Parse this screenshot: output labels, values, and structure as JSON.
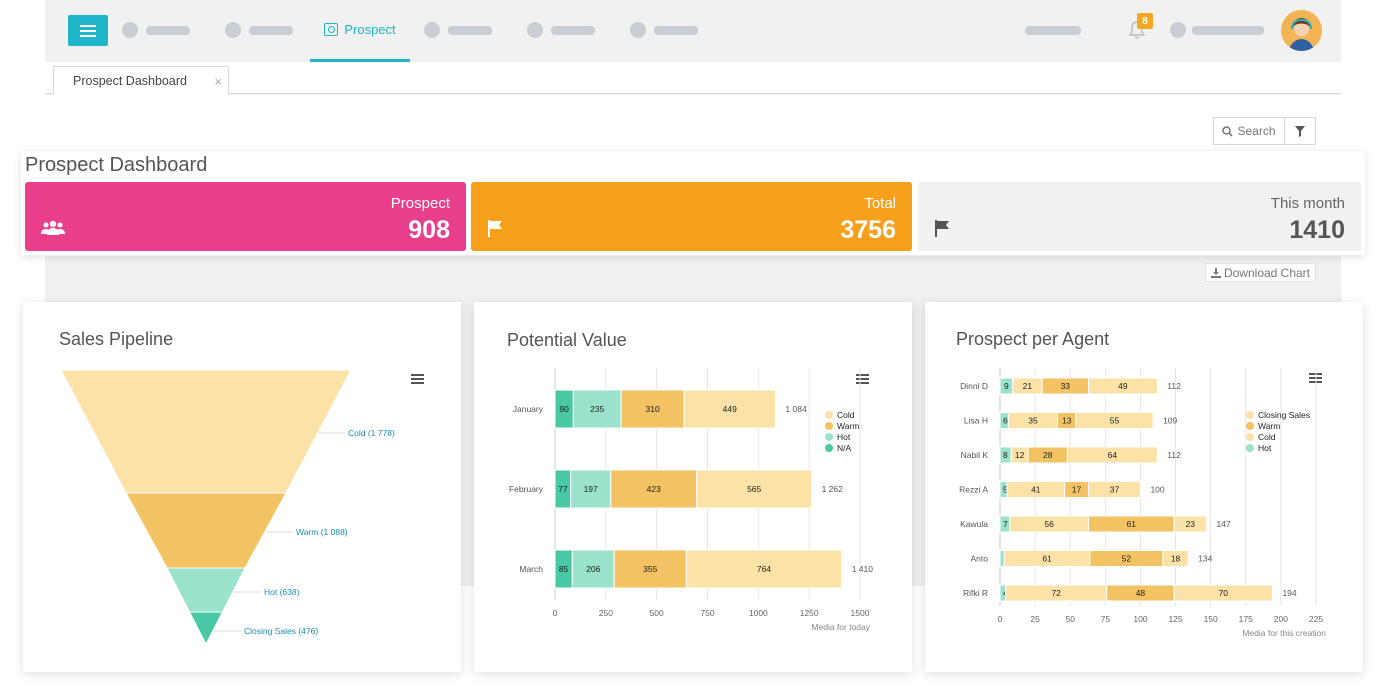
{
  "nav": {
    "active_tab": "Prospect",
    "notification_count": "8"
  },
  "tabs": {
    "open_tab": "Prospect Dashboard",
    "close": "×"
  },
  "toolbar": {
    "search_label": "Search"
  },
  "dashboard": {
    "title": "Prospect Dashboard",
    "stats": [
      {
        "label": "Prospect",
        "value": "908",
        "icon": "users-icon",
        "color": "#e83e8c"
      },
      {
        "label": "Total",
        "value": "3756",
        "icon": "flag-icon",
        "color": "#f7a01c"
      },
      {
        "label": "This month",
        "value": "1410",
        "icon": "flag-icon",
        "color": "#f1f1f1"
      }
    ],
    "download_label": "Download Chart"
  },
  "colors": {
    "cold": "#fde2a8",
    "warm": "#f3c262",
    "hot": "#9be2cc",
    "na": "#48c9a3",
    "accent": "#1fb6c9"
  },
  "chart_data": [
    {
      "type": "funnel",
      "title": "Sales Pipeline",
      "stages": [
        {
          "name": "Cold",
          "value": 1778,
          "label": "Cold (1 778)"
        },
        {
          "name": "Warm",
          "value": 1088,
          "label": "Warm (1 088)"
        },
        {
          "name": "Hot",
          "value": 638,
          "label": "Hot (638)"
        },
        {
          "name": "Closing Sales",
          "value": 476,
          "label": "Closing Sales (476)"
        }
      ]
    },
    {
      "type": "bar",
      "stacked": true,
      "orientation": "horizontal",
      "title": "Potential Value",
      "categories": [
        "January",
        "February",
        "March"
      ],
      "series": [
        {
          "name": "N/A",
          "values": [
            90,
            77,
            85
          ]
        },
        {
          "name": "Hot",
          "values": [
            235,
            197,
            206
          ]
        },
        {
          "name": "Warm",
          "values": [
            310,
            423,
            355
          ]
        },
        {
          "name": "Cold",
          "values": [
            449,
            565,
            764
          ]
        }
      ],
      "totals": [
        "1 084",
        "1 262",
        "1 410"
      ],
      "xticks": [
        "0",
        "250",
        "500",
        "750",
        "1000",
        "1250",
        "1500"
      ],
      "xlim": [
        0,
        1500
      ],
      "xlabel": "Media for today",
      "legend": [
        "Cold",
        "Warm",
        "Hot",
        "N/A"
      ]
    },
    {
      "type": "bar",
      "stacked": true,
      "orientation": "horizontal",
      "title": "Prospect per Agent",
      "categories": [
        "Dinni D",
        "Lisa H",
        "Nabil K",
        "Rezzi A",
        "Kawula",
        "Anto",
        "Rifki R"
      ],
      "series": [
        {
          "name": "Hot",
          "values": [
            9,
            6,
            8,
            5,
            7,
            3,
            4
          ]
        },
        {
          "name": "Cold",
          "values": [
            21,
            35,
            12,
            41,
            56,
            61,
            72
          ]
        },
        {
          "name": "Warm",
          "values": [
            33,
            13,
            28,
            17,
            61,
            52,
            48
          ]
        },
        {
          "name": "Closing Sales",
          "values": [
            49,
            55,
            64,
            37,
            23,
            18,
            70
          ]
        }
      ],
      "totals": [
        "112",
        "109",
        "112",
        "100",
        "147",
        "134",
        "194"
      ],
      "xticks": [
        "0",
        "25",
        "50",
        "75",
        "100",
        "125",
        "150",
        "175",
        "200",
        "225"
      ],
      "xlim": [
        0,
        225
      ],
      "xlabel": "Media for this creation",
      "legend": [
        "Closing Sales",
        "Warm",
        "Cold",
        "Hot"
      ]
    }
  ]
}
